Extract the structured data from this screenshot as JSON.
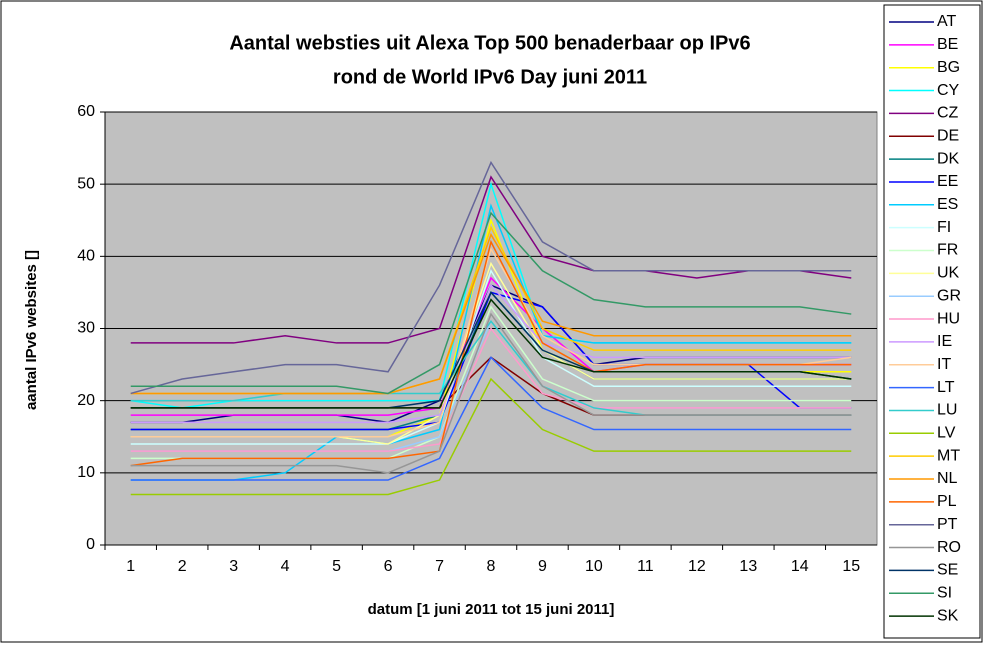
{
  "chart_data": {
    "type": "line",
    "title": [
      "Aantal websties uit Alexa Top 500 benaderbaar op IPv6",
      "rond de World IPv6 Day juni 2011"
    ],
    "x_label": "datum [1 juni 2011 tot 15 juni 2011]",
    "y_label": "aantal IPv6 websites []",
    "categories": [
      "1",
      "2",
      "3",
      "4",
      "5",
      "6",
      "7",
      "8",
      "9",
      "10",
      "11",
      "12",
      "13",
      "14",
      "15"
    ],
    "ylim": [
      0,
      60
    ],
    "yticks": [
      0,
      10,
      20,
      30,
      40,
      50,
      60
    ],
    "grid": true,
    "legend": "right",
    "series": [
      {
        "name": "AT",
        "color": "#000080",
        "values": [
          17,
          17,
          18,
          18,
          18,
          17,
          20,
          36,
          33,
          25,
          26,
          26,
          26,
          26,
          26
        ]
      },
      {
        "name": "BE",
        "color": "#FF00FF",
        "values": [
          18,
          18,
          18,
          18,
          18,
          18,
          19,
          37,
          30,
          24,
          25,
          25,
          25,
          25,
          25
        ]
      },
      {
        "name": "BG",
        "color": "#FFFF00",
        "values": [
          15,
          15,
          15,
          15,
          15,
          15,
          18,
          45,
          27,
          24,
          24,
          24,
          24,
          24,
          24
        ]
      },
      {
        "name": "CY",
        "color": "#00FFFF",
        "values": [
          20,
          19,
          20,
          20,
          20,
          20,
          20,
          50,
          29,
          28,
          28,
          28,
          28,
          28,
          28
        ]
      },
      {
        "name": "CZ",
        "color": "#800080",
        "values": [
          28,
          28,
          28,
          29,
          28,
          28,
          30,
          51,
          40,
          38,
          38,
          37,
          38,
          38,
          37
        ]
      },
      {
        "name": "DE",
        "color": "#800000",
        "values": [
          19,
          19,
          19,
          19,
          19,
          19,
          19,
          26,
          21,
          18,
          18,
          18,
          18,
          18,
          18
        ]
      },
      {
        "name": "DK",
        "color": "#008080",
        "values": [
          16,
          16,
          16,
          16,
          16,
          16,
          18,
          35,
          27,
          23,
          23,
          23,
          23,
          23,
          23
        ]
      },
      {
        "name": "EE",
        "color": "#0000FF",
        "values": [
          16,
          16,
          16,
          16,
          16,
          16,
          17,
          35,
          33,
          25,
          25,
          25,
          25,
          19,
          19
        ]
      },
      {
        "name": "ES",
        "color": "#00CCFF",
        "values": [
          9,
          9,
          9,
          10,
          15,
          14,
          16,
          47,
          29,
          28,
          28,
          28,
          28,
          28,
          28
        ]
      },
      {
        "name": "FI",
        "color": "#CCFFFF",
        "values": [
          14,
          14,
          14,
          14,
          14,
          14,
          17,
          38,
          26,
          22,
          22,
          22,
          22,
          22,
          22
        ]
      },
      {
        "name": "FR",
        "color": "#CCFFCC",
        "values": [
          12,
          12,
          12,
          12,
          12,
          12,
          15,
          33,
          23,
          20,
          20,
          20,
          20,
          20,
          20
        ]
      },
      {
        "name": "UK",
        "color": "#FFFF99",
        "values": [
          15,
          15,
          15,
          15,
          15,
          14,
          18,
          39,
          27,
          23,
          23,
          23,
          23,
          23,
          23
        ]
      },
      {
        "name": "GR",
        "color": "#99CCFF",
        "values": [
          13,
          13,
          13,
          13,
          13,
          13,
          15,
          31,
          22,
          19,
          19,
          19,
          19,
          19,
          19
        ]
      },
      {
        "name": "HU",
        "color": "#FF99CC",
        "values": [
          13,
          13,
          13,
          13,
          13,
          13,
          14,
          30,
          21,
          19,
          19,
          19,
          19,
          19,
          19
        ]
      },
      {
        "name": "IE",
        "color": "#CC99FF",
        "values": [
          17,
          17,
          17,
          17,
          17,
          17,
          18,
          36,
          28,
          26,
          26,
          26,
          26,
          26,
          26
        ]
      },
      {
        "name": "IT",
        "color": "#FFCC99",
        "values": [
          15,
          15,
          15,
          15,
          15,
          15,
          17,
          41,
          29,
          25,
          25,
          25,
          25,
          25,
          26
        ]
      },
      {
        "name": "LT",
        "color": "#3366FF",
        "values": [
          9,
          9,
          9,
          9,
          9,
          9,
          12,
          26,
          19,
          16,
          16,
          16,
          16,
          16,
          16
        ]
      },
      {
        "name": "LU",
        "color": "#33CCCC",
        "values": [
          20,
          20,
          20,
          21,
          21,
          21,
          21,
          31,
          22,
          19,
          18,
          18,
          18,
          18,
          18
        ]
      },
      {
        "name": "LV",
        "color": "#99CC00",
        "values": [
          7,
          7,
          7,
          7,
          7,
          7,
          9,
          23,
          16,
          13,
          13,
          13,
          13,
          13,
          13
        ]
      },
      {
        "name": "MT",
        "color": "#FFCC00",
        "values": [
          21,
          21,
          21,
          21,
          21,
          21,
          23,
          44,
          30,
          27,
          27,
          27,
          27,
          27,
          27
        ]
      },
      {
        "name": "NL",
        "color": "#FF9900",
        "values": [
          21,
          21,
          21,
          21,
          21,
          21,
          23,
          43,
          31,
          29,
          29,
          29,
          29,
          29,
          29
        ]
      },
      {
        "name": "PL",
        "color": "#FF6600",
        "values": [
          11,
          12,
          12,
          12,
          12,
          12,
          13,
          42,
          28,
          24,
          25,
          25,
          25,
          25,
          25
        ]
      },
      {
        "name": "PT",
        "color": "#666699",
        "values": [
          21,
          23,
          24,
          25,
          25,
          24,
          36,
          53,
          42,
          38,
          38,
          38,
          38,
          38,
          38
        ]
      },
      {
        "name": "RO",
        "color": "#969696",
        "values": [
          11,
          11,
          11,
          11,
          11,
          10,
          13,
          32,
          22,
          18,
          18,
          18,
          18,
          18,
          18
        ]
      },
      {
        "name": "SE",
        "color": "#003366",
        "values": [
          19,
          19,
          19,
          19,
          19,
          19,
          20,
          35,
          27,
          24,
          24,
          24,
          24,
          24,
          23
        ]
      },
      {
        "name": "SI",
        "color": "#339966",
        "values": [
          22,
          22,
          22,
          22,
          22,
          21,
          25,
          46,
          38,
          34,
          33,
          33,
          33,
          33,
          32
        ]
      },
      {
        "name": "SK",
        "color": "#003300",
        "values": [
          19,
          19,
          19,
          19,
          19,
          19,
          19,
          34,
          26,
          24,
          24,
          24,
          24,
          24,
          23
        ]
      }
    ]
  }
}
